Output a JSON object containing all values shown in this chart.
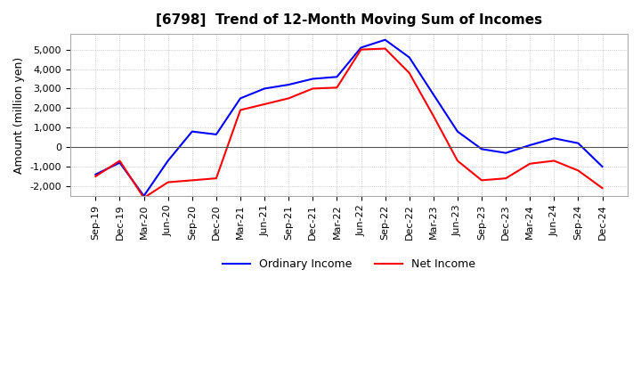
{
  "title": "[6798]  Trend of 12-Month Moving Sum of Incomes",
  "ylabel": "Amount (million yen)",
  "ylim": [
    -2500,
    5800
  ],
  "yticks": [
    -2000,
    -1000,
    0,
    1000,
    2000,
    3000,
    4000,
    5000
  ],
  "x_labels": [
    "Sep-19",
    "Dec-19",
    "Mar-20",
    "Jun-20",
    "Sep-20",
    "Dec-20",
    "Mar-21",
    "Jun-21",
    "Sep-21",
    "Dec-21",
    "Mar-22",
    "Jun-22",
    "Sep-22",
    "Dec-22",
    "Mar-23",
    "Jun-23",
    "Sep-23",
    "Dec-23",
    "Mar-24",
    "Jun-24",
    "Sep-24",
    "Dec-24"
  ],
  "ordinary_income": [
    -1400,
    -800,
    -2500,
    -700,
    800,
    650,
    2500,
    3000,
    3200,
    3500,
    3600,
    5100,
    5500,
    4600,
    2700,
    800,
    -100,
    -300,
    100,
    450,
    200,
    -1000
  ],
  "net_income": [
    -1500,
    -700,
    -2600,
    -1800,
    -1700,
    -1600,
    1900,
    2200,
    2500,
    3000,
    3050,
    5000,
    5050,
    3800,
    1600,
    -700,
    -1700,
    -1600,
    -850,
    -700,
    -1200,
    -2100
  ],
  "ordinary_color": "#0000ff",
  "net_color": "#ff0000",
  "background_color": "#ffffff",
  "grid_color": "#aaaaaa",
  "title_fontsize": 11,
  "label_fontsize": 9,
  "tick_fontsize": 8,
  "legend_fontsize": 9,
  "zero_line_color": "#555555"
}
